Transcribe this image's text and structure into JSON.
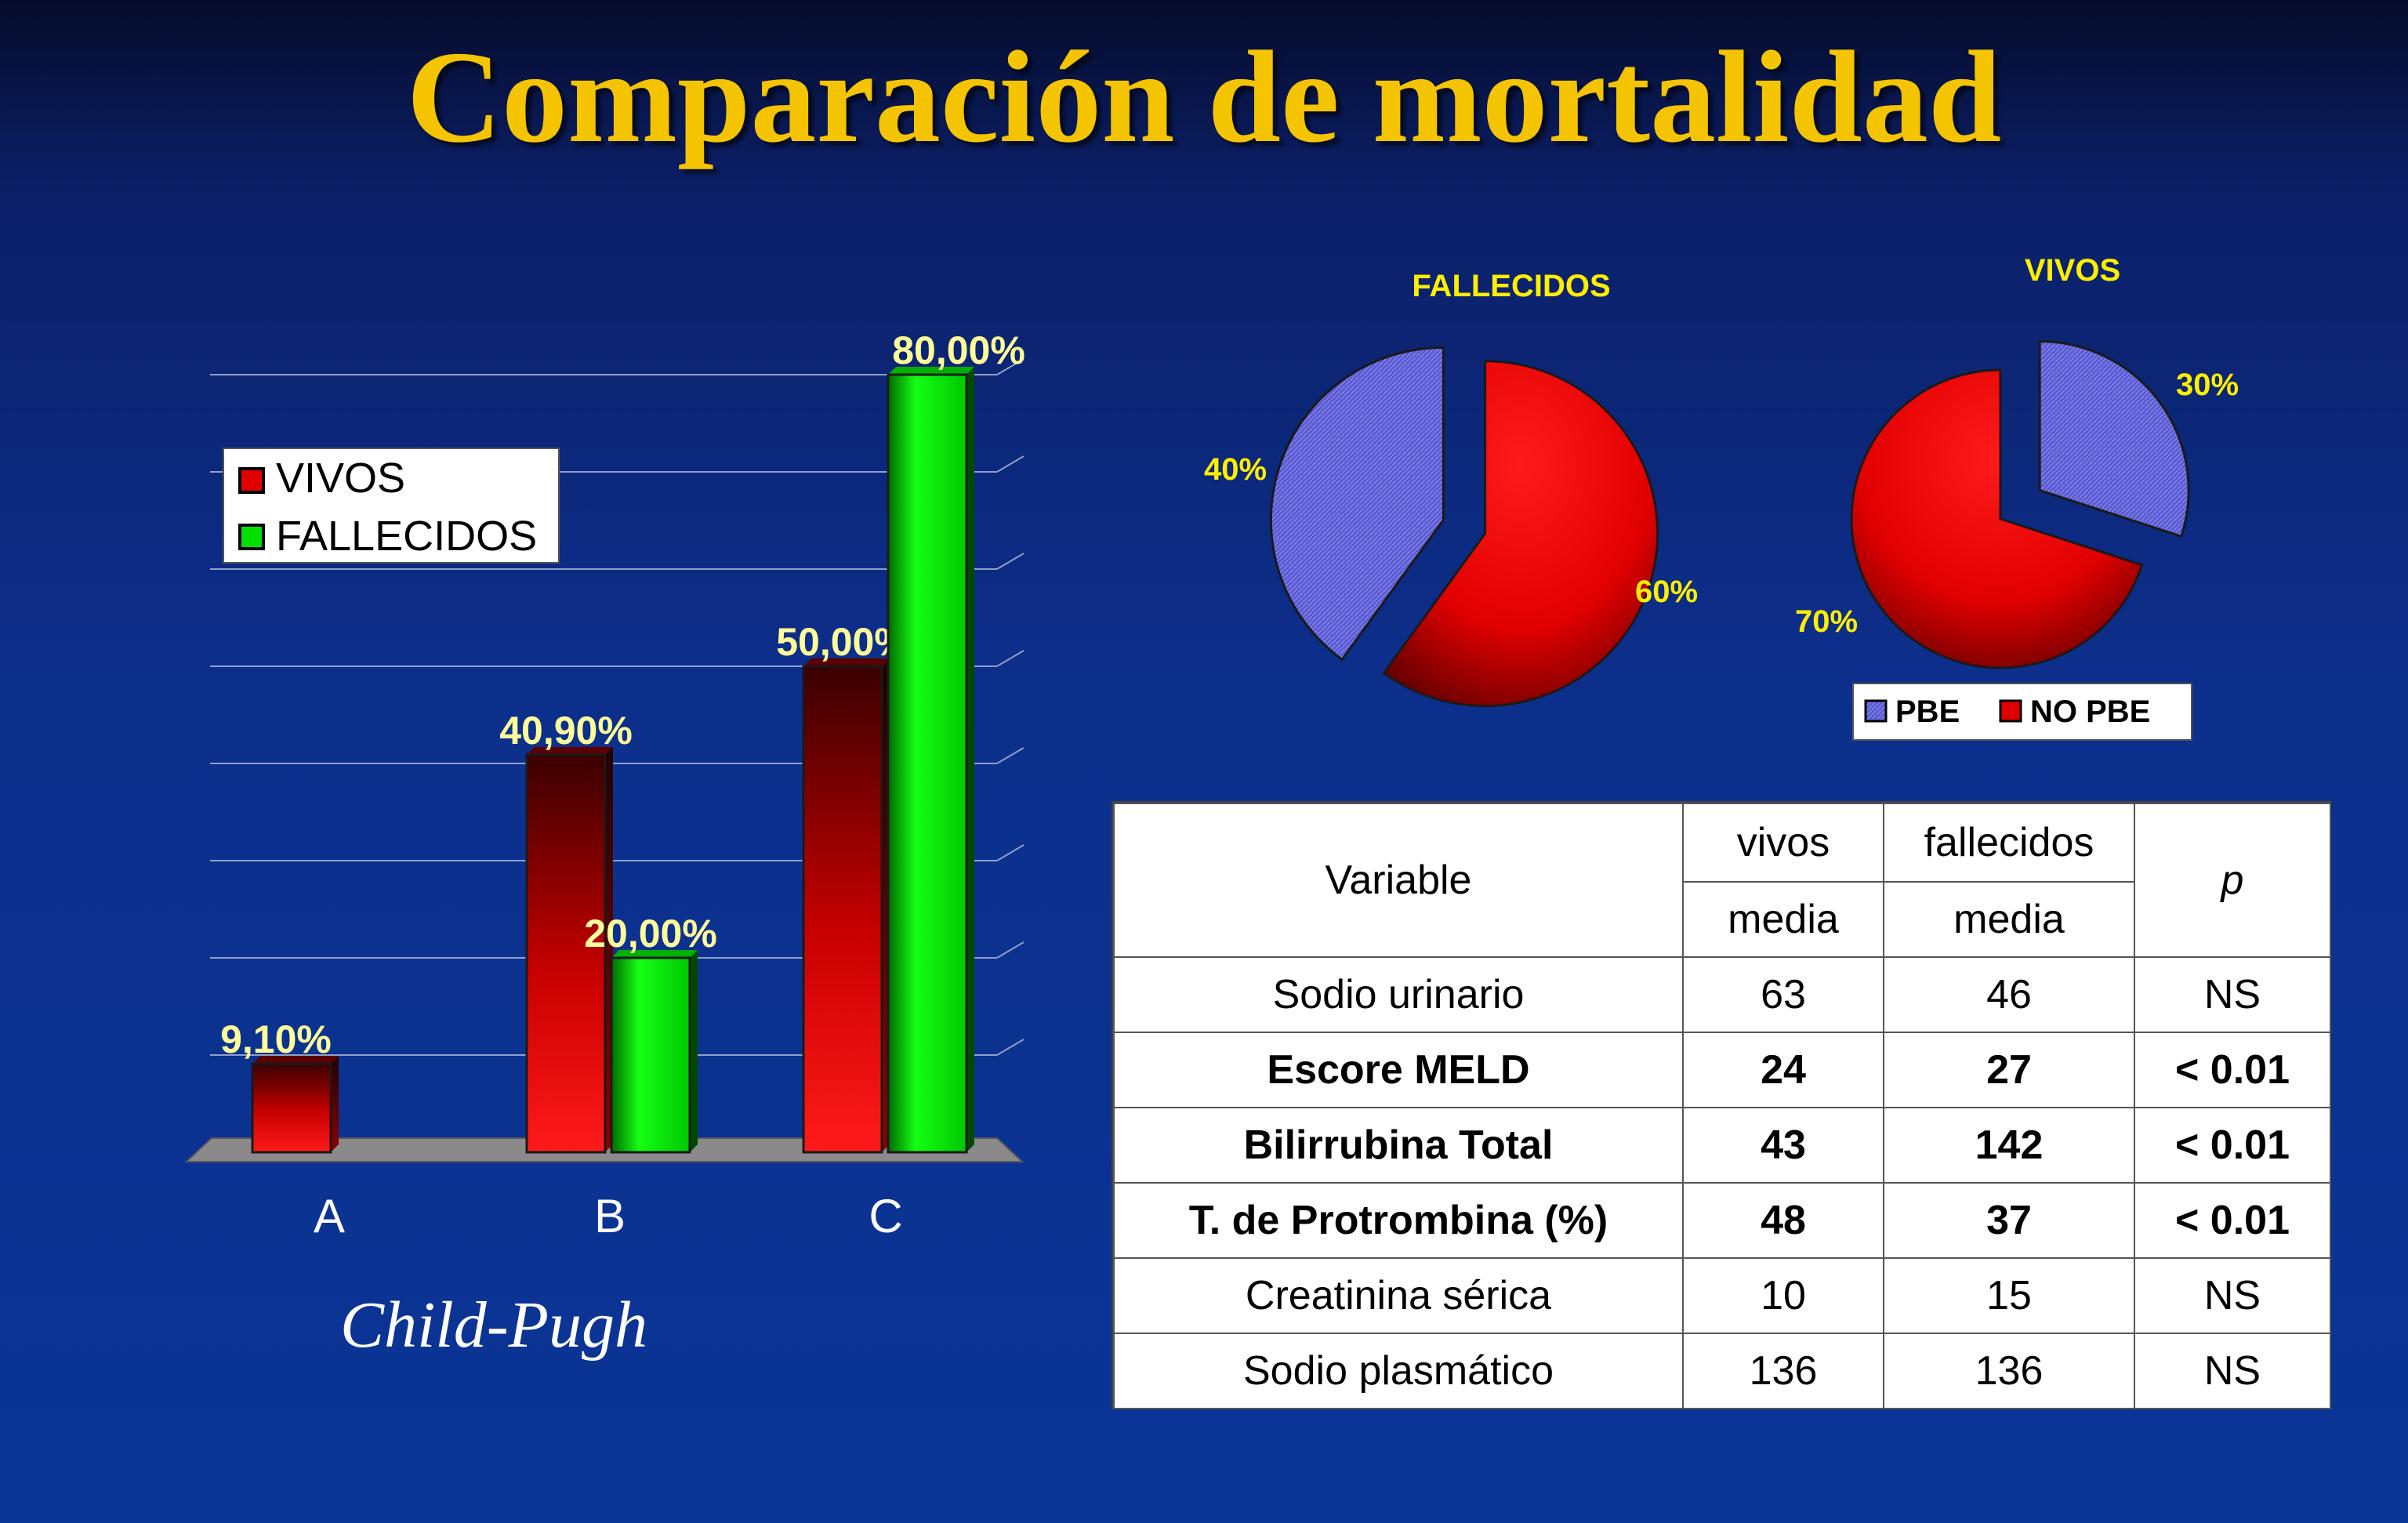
{
  "title": "Comparación de mortalidad",
  "chart_data": [
    {
      "type": "bar",
      "categories": [
        "A",
        "B",
        "C"
      ],
      "series": [
        {
          "name": "VIVOS",
          "values": [
            9.1,
            40.9,
            50.0
          ],
          "labels": [
            "9,10%",
            "40,90%",
            "50,00%"
          ],
          "color": "#e00000"
        },
        {
          "name": "FALLECIDOS",
          "values": [
            null,
            20.0,
            80.0
          ],
          "labels": [
            "",
            "20,00%",
            "80,00%"
          ],
          "color": "#00e000"
        }
      ],
      "xlabel": "Child-Pugh",
      "ylim": [
        0,
        80
      ],
      "grid": true,
      "legend": "top-left"
    },
    {
      "type": "pie",
      "title": "FALLECIDOS",
      "slices": [
        {
          "name": "PBE",
          "value": 40,
          "label": "40%",
          "color": "#5a5ad0"
        },
        {
          "name": "NO PBE",
          "value": 60,
          "label": "60%",
          "color": "#e00000"
        }
      ]
    },
    {
      "type": "pie",
      "title": "VIVOS",
      "slices": [
        {
          "name": "PBE",
          "value": 30,
          "label": "30%",
          "color": "#5a5ad0"
        },
        {
          "name": "NO PBE",
          "value": 70,
          "label": "70%",
          "color": "#e00000"
        }
      ],
      "legend": [
        "PBE",
        "NO PBE"
      ]
    },
    {
      "type": "table",
      "header": {
        "variable": "Variable",
        "vivos": "vivos",
        "fallecidos": "fallecidos",
        "p": "p",
        "sub_vivos": "media",
        "sub_fallecidos": "media"
      },
      "rows": [
        {
          "variable": "Sodio urinario",
          "vivos": "63",
          "fallecidos": "46",
          "p": "NS",
          "bold": false
        },
        {
          "variable": "Escore MELD",
          "vivos": "24",
          "fallecidos": "27",
          "p": "< 0.01",
          "bold": true
        },
        {
          "variable": "Bilirrubina Total",
          "vivos": "43",
          "fallecidos": "142",
          "p": "< 0.01",
          "bold": true
        },
        {
          "variable": "T. de Protrombina (%)",
          "vivos": "48",
          "fallecidos": "37",
          "p": "< 0.01",
          "bold": true
        },
        {
          "variable": "Creatinina sérica",
          "vivos": "10",
          "fallecidos": "15",
          "p": "NS",
          "bold": false
        },
        {
          "variable": "Sodio plasmático",
          "vivos": "136",
          "fallecidos": "136",
          "p": "NS",
          "bold": false
        }
      ]
    }
  ],
  "colors": {
    "title": "#f5c400",
    "label_yellow": "#ffff99",
    "pie_label": "#ffee00",
    "legend_bg": "#ffffff"
  }
}
